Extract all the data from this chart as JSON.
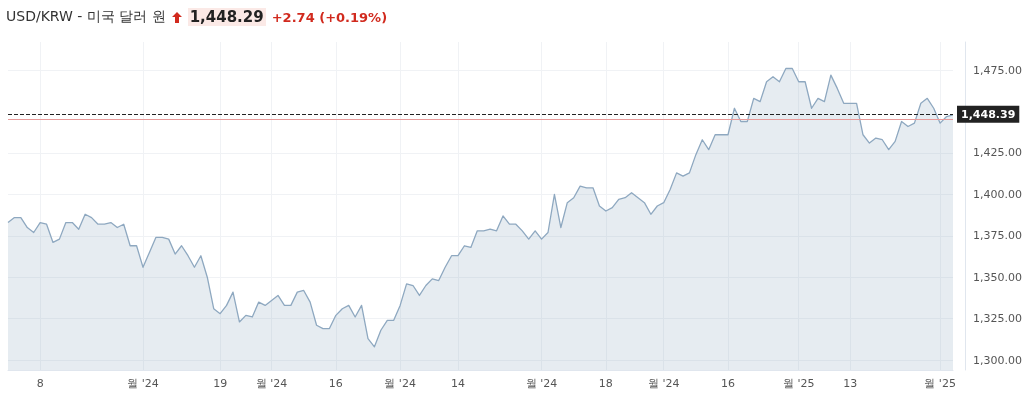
{
  "chart_data": {
    "type": "area",
    "title": "USD/KRW - 미국 달러 원",
    "annotations": [
      "1,448.29",
      "+2.74 (+0.19%)"
    ],
    "categories": [
      null,
      null,
      null,
      null,
      null,
      "8",
      null,
      null,
      null,
      null,
      null,
      null,
      null,
      null,
      null,
      null,
      null,
      null,
      null,
      null,
      null,
      "월 '24",
      null,
      null,
      null,
      null,
      null,
      null,
      null,
      null,
      null,
      null,
      null,
      "19",
      null,
      null,
      null,
      null,
      null,
      null,
      null,
      "월 '24",
      null,
      null,
      null,
      null,
      null,
      null,
      null,
      null,
      null,
      "16",
      null,
      null,
      null,
      null,
      null,
      null,
      null,
      null,
      null,
      "월 '24",
      null,
      null,
      null,
      null,
      null,
      null,
      null,
      null,
      "14",
      null,
      null,
      null,
      null,
      null,
      null,
      null,
      null,
      null,
      null,
      null,
      null,
      "월 '24",
      null,
      null,
      null,
      null,
      null,
      null,
      null,
      null,
      null,
      "18",
      null,
      null,
      null,
      null,
      null,
      null,
      null,
      null,
      "월 '24",
      null,
      null,
      null,
      null,
      null,
      null,
      null,
      null,
      null,
      "16",
      null,
      null,
      null,
      null,
      null,
      null,
      null,
      null,
      null,
      null,
      "월 '25",
      null,
      null,
      null,
      null,
      null,
      null,
      null,
      "13",
      null,
      null,
      null,
      null,
      null,
      null,
      null,
      null,
      null,
      null,
      null,
      null,
      null,
      "월 '25",
      null,
      null
    ],
    "series": [
      {
        "color": "#8ea8c0",
        "values": [
          1383,
          1386,
          1386,
          1380,
          1377,
          1383,
          1382,
          1371,
          1373,
          1383,
          1383,
          1379,
          1388,
          1386,
          1382,
          1382,
          1383,
          1380,
          1382,
          1369,
          1369,
          1356,
          1365,
          1374,
          1374,
          1373,
          1364,
          1369,
          1363,
          1356,
          1363,
          1350,
          1331,
          1328,
          1333,
          1341,
          1323,
          1327,
          1326,
          1335,
          1333,
          1336,
          1339,
          1333,
          1333,
          1341,
          1342,
          1335,
          1321,
          1319,
          1319,
          1327,
          1331,
          1333,
          1326,
          1333,
          1313,
          1308,
          1318,
          1324,
          1324,
          1333,
          1346,
          1345,
          1339,
          1345,
          1349,
          1348,
          1356,
          1363,
          1363,
          1369,
          1368,
          1378,
          1378,
          1379,
          1378,
          1387,
          1382,
          1382,
          1378,
          1373,
          1378,
          1373,
          1377,
          1400,
          1380,
          1395,
          1398,
          1405,
          1404,
          1404,
          1393,
          1390,
          1392,
          1397,
          1398,
          1401,
          1398,
          1395,
          1388,
          1393,
          1395,
          1403,
          1413,
          1411,
          1413,
          1424,
          1433,
          1427,
          1436,
          1436,
          1436,
          1452,
          1444,
          1444,
          1458,
          1456,
          1468,
          1471,
          1468,
          1476,
          1476,
          1468,
          1468,
          1452,
          1458,
          1456,
          1472,
          1464,
          1455,
          1455,
          1455,
          1436,
          1431,
          1434,
          1433,
          1427,
          1432,
          1444,
          1441,
          1443,
          1455,
          1458,
          1452,
          1443,
          1447,
          1448
        ]
      }
    ],
    "ylim": [
      1294,
      1492
    ],
    "yticks": [
      {
        "value": 1300,
        "label": "1,300.00"
      },
      {
        "value": 1325,
        "label": "1,325.00"
      },
      {
        "value": 1350,
        "label": "1,350.00"
      },
      {
        "value": 1375,
        "label": "1,375.00"
      },
      {
        "value": 1400,
        "label": "1,400.00"
      },
      {
        "value": 1425,
        "label": "1,425.00"
      },
      {
        "value": 1475,
        "label": "1,475.00"
      }
    ],
    "ref_lines": [
      {
        "axis": "y",
        "value": 1448.39,
        "label": "1,448.39",
        "color": "#222222",
        "line_style": "dashed"
      },
      {
        "axis": "y",
        "value": 1445.55,
        "color": "#e89a9a",
        "line_style": "solid"
      }
    ],
    "grid": true,
    "marker": "none"
  }
}
